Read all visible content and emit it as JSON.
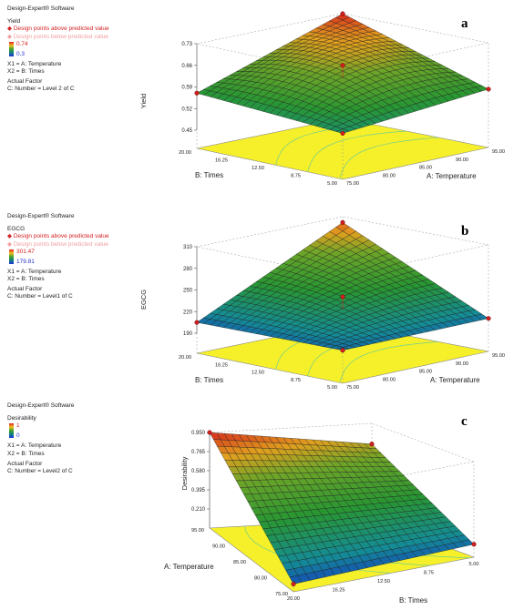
{
  "panels": [
    {
      "letter": "a",
      "software": "Design-Expert® Software",
      "response": "Yield",
      "above_text": "Design points above predicted value",
      "below_text": "Design points below predicted value",
      "range_hi": "0.74",
      "range_lo": "0.3",
      "x1_text": "X1 = A: Temperature",
      "x2_text": "X2 = B: Times",
      "actual_factor": "Actual Factor",
      "number_text": "C: Number = Level 2 of C"
    },
    {
      "letter": "b",
      "software": "Design-Expert® Software",
      "response": "EGCG",
      "above_text": "Design points above predicted value",
      "below_text": "Design points below predicted value",
      "range_hi": "301.47",
      "range_lo": "179.81",
      "x1_text": "X1 = A: Temperature",
      "x2_text": "X2 = B: Times",
      "actual_factor": "Actual Factor",
      "number_text": "C: Number = Level1 of C"
    },
    {
      "letter": "c",
      "software": "Design-Expert® Software",
      "response": "Desirability",
      "range_hi": "1",
      "range_lo": "0",
      "x1_text": "X1 = A: Temperature",
      "x2_text": "X2 = B: Times",
      "actual_factor": "Actual Factor",
      "number_text": "C: Number = Level2 of C"
    }
  ],
  "chart_data": [
    {
      "type": "surface",
      "panel": "a",
      "zlabel": "Yield",
      "xlabel": "A: Temperature",
      "ylabel": "B: Times",
      "x_ticks": [
        "75.00",
        "80.00",
        "85.00",
        "90.00",
        "95.00"
      ],
      "y_ticks": [
        "5.00",
        "8.75",
        "12.50",
        "16.25",
        "20.00"
      ],
      "z_ticks": [
        "0.45",
        "0.52",
        "0.59",
        "0.66",
        "0.73"
      ],
      "zlim": [
        0.45,
        0.73
      ],
      "corners": {
        "T75_t5": 0.54,
        "T95_t5": 0.58,
        "T75_t20": 0.57,
        "T95_t20": 0.73
      },
      "center_point": 0.66
    },
    {
      "type": "surface",
      "panel": "b",
      "zlabel": "EGCG",
      "xlabel": "A: Temperature",
      "ylabel": "B: Times",
      "x_ticks": [
        "75.00",
        "80.00",
        "85.00",
        "90.00",
        "95.00"
      ],
      "y_ticks": [
        "5.00",
        "8.75",
        "12.50",
        "16.25",
        "20.00"
      ],
      "z_ticks": [
        "190",
        "220",
        "250",
        "280",
        "310"
      ],
      "zlim": [
        190,
        310
      ],
      "corners": {
        "T75_t5": 208,
        "T95_t5": 208,
        "T75_t20": 205,
        "T95_t20": 302
      },
      "center_point": 240
    },
    {
      "type": "surface",
      "panel": "c",
      "zlabel": "Desirability",
      "xlabel": "A: Temperature",
      "ylabel": "B: Times",
      "x_ticks": [
        "75.00",
        "80.00",
        "85.00",
        "90.00",
        "95.00"
      ],
      "y_ticks": [
        "5.00",
        "8.75",
        "12.50",
        "16.25",
        "20.00"
      ],
      "z_ticks": [
        "0.210",
        "0.395",
        "0.580",
        "0.765",
        "0.950"
      ],
      "zlim": [
        0.025,
        0.95
      ],
      "corners": {
        "T75_t5": 0.15,
        "T95_t5": 0.75,
        "T75_t20": 0.1,
        "T95_t20": 0.95
      }
    }
  ]
}
